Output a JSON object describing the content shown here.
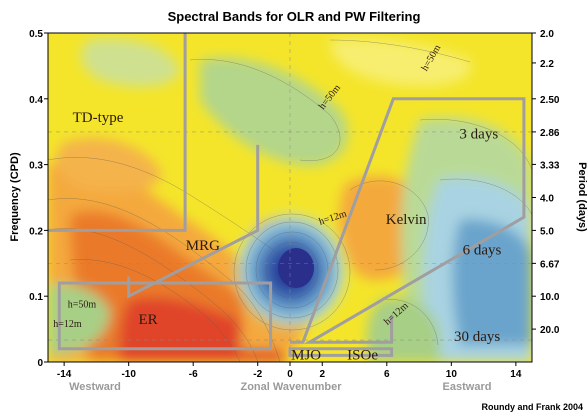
{
  "chart_data": {
    "type": "heatmap",
    "title": "Spectral Bands for OLR and PW Filtering",
    "xlabel": "Zonal Wavenumber",
    "ylabel_left": "Frequency (CPD)",
    "ylabel_right": "Period (days)",
    "xlim": [
      -15,
      15
    ],
    "ylim": [
      0,
      0.5
    ],
    "x_ticks": [
      -14,
      -10,
      -6,
      -2,
      0,
      2,
      6,
      10,
      14
    ],
    "y_ticks_left": [
      0,
      0.1,
      0.2,
      0.3,
      0.4,
      0.5
    ],
    "y_tick_labels_left": [
      "0",
      "0.1",
      "0.2",
      "0.3",
      "0.4",
      "0.5"
    ],
    "y_ticks_right": [
      {
        "freq": 0.5,
        "label": "2.0"
      },
      {
        "freq": 0.4545,
        "label": "2.2"
      },
      {
        "freq": 0.4,
        "label": "2.50"
      },
      {
        "freq": 0.3497,
        "label": "2.86"
      },
      {
        "freq": 0.3003,
        "label": "3.33"
      },
      {
        "freq": 0.25,
        "label": "4.0"
      },
      {
        "freq": 0.2,
        "label": "5.0"
      },
      {
        "freq": 0.1499,
        "label": "6.67"
      },
      {
        "freq": 0.1,
        "label": "10.0"
      },
      {
        "freq": 0.05,
        "label": "20.0"
      }
    ],
    "direction_labels": {
      "west": "Westward",
      "east": "Eastward"
    },
    "credit": "Roundy and Frank 2004",
    "grid": "dashed",
    "bands": [
      {
        "name": "TD-type",
        "label": "TD-type",
        "vertices": [
          [
            -15,
            0.2
          ],
          [
            -6.5,
            0.2
          ],
          [
            -6.5,
            0.5
          ]
        ]
      },
      {
        "name": "MRG",
        "label": "MRG",
        "vertices": [
          [
            -10,
            0.13
          ],
          [
            -10,
            0.1
          ],
          [
            -2,
            0.2
          ],
          [
            -2,
            0.33
          ]
        ]
      },
      {
        "name": "Kelvin",
        "label": "Kelvin",
        "vertices": [
          [
            0,
            0.03
          ],
          [
            0.8,
            0.03
          ],
          [
            6.4,
            0.4
          ],
          [
            14.5,
            0.4
          ],
          [
            14.5,
            0.22
          ],
          [
            1.2,
            0.03
          ],
          [
            6.3,
            0.03
          ],
          [
            6.3,
            0.07
          ]
        ]
      },
      {
        "name": "ER",
        "label": "ER",
        "vertices": [
          [
            -14.3,
            0.12
          ],
          [
            -1.2,
            0.12
          ],
          [
            -1.2,
            0.02
          ],
          [
            -14.3,
            0.02
          ]
        ]
      },
      {
        "name": "MJO-ISOe",
        "label_mjo": "MJO",
        "label_isoe": "ISOe",
        "vertices": [
          [
            0,
            0.01
          ],
          [
            0,
            0.02
          ],
          [
            6.3,
            0.02
          ],
          [
            6.3,
            0.01
          ]
        ]
      }
    ],
    "annotations": [
      {
        "text": "h=50m",
        "x": 2.6,
        "y": 0.4,
        "rotation": -52
      },
      {
        "text": "h=50m",
        "x": 8.9,
        "y": 0.46,
        "rotation": -60
      },
      {
        "text": "h=12m",
        "x": 2.7,
        "y": 0.215,
        "rotation": -18
      },
      {
        "text": "h=12m",
        "x": 6.7,
        "y": 0.07,
        "rotation": -42
      },
      {
        "text": "h=50m",
        "x": -12.9,
        "y": 0.083,
        "rotation": 0
      },
      {
        "text": "h=12m",
        "x": -13.8,
        "y": 0.053,
        "rotation": 0
      },
      {
        "text": "3 days",
        "x": 11.7,
        "y": 0.34,
        "rotation": 0
      },
      {
        "text": "6 days",
        "x": 11.9,
        "y": 0.163,
        "rotation": 0
      },
      {
        "text": "30 days",
        "x": 11.6,
        "y": 0.032,
        "rotation": 0
      }
    ],
    "colors": {
      "yellow": "#f4e52a",
      "light_yellow": "#f7ee70",
      "orange": "#f4a93c",
      "dark_orange": "#ea7a2a",
      "red": "#e0442a",
      "green": "#9ec98a",
      "light_blue": "#a9d3e2",
      "blue": "#6aa4cc",
      "dark_blue": "#2b2f8f",
      "band_outline": "#a09ea0"
    }
  }
}
